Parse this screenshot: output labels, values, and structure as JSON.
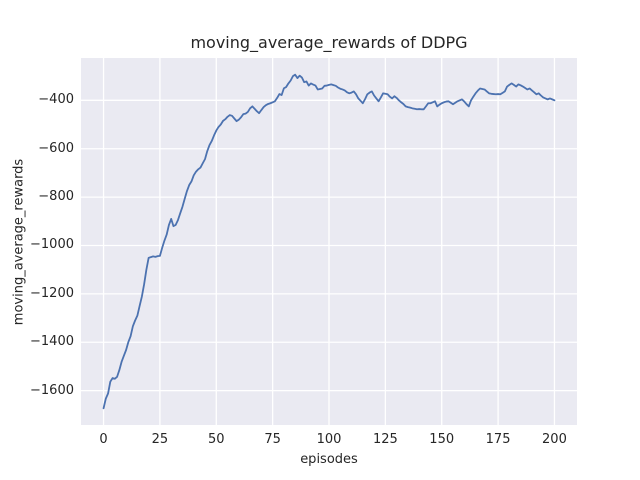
{
  "chart_data": {
    "type": "line",
    "title": "moving_average_rewards of DDPG",
    "xlabel": "episodes",
    "ylabel": "moving_average_rewards",
    "x_tick_labels": [
      "0",
      "25",
      "50",
      "75",
      "100",
      "125",
      "150",
      "175",
      "200"
    ],
    "x_tick_values": [
      0,
      25,
      50,
      75,
      100,
      125,
      150,
      175,
      200
    ],
    "y_tick_labels": [
      "−400",
      "−600",
      "−800",
      "−1000",
      "−1200",
      "−1400",
      "−1600"
    ],
    "y_tick_values": [
      -400,
      -600,
      -800,
      -1000,
      -1200,
      -1400,
      -1600
    ],
    "xlim": [
      -10,
      210
    ],
    "ylim": [
      -1742,
      -225
    ],
    "grid": true,
    "legend": false,
    "style": {
      "figure_background": "#ffffff",
      "plot_background": "#eaeaf2",
      "grid_color": "#ffffff",
      "text_color": "#262626"
    },
    "series": [
      {
        "name": "moving_average_rewards",
        "color": "#4c72b0",
        "x": [
          0,
          1,
          2,
          3,
          4,
          5,
          6,
          7,
          8,
          9,
          10,
          11,
          12,
          13,
          14,
          15,
          16,
          17,
          18,
          19,
          20,
          21,
          22,
          23,
          24,
          25,
          26,
          27,
          28,
          29,
          30,
          31,
          32,
          33,
          34,
          35,
          36,
          37,
          38,
          39,
          40,
          41,
          42,
          43,
          44,
          45,
          46,
          47,
          48,
          49,
          50,
          51,
          52,
          53,
          54,
          55,
          56,
          57,
          58,
          59,
          60,
          61,
          62,
          63,
          64,
          65,
          66,
          67,
          68,
          69,
          70,
          71,
          72,
          73,
          74,
          75,
          76,
          77,
          78,
          79,
          80,
          81,
          82,
          83,
          84,
          85,
          86,
          87,
          88,
          89,
          90,
          91,
          92,
          93,
          94,
          95,
          96,
          97,
          98,
          99,
          100,
          101,
          102,
          103,
          104,
          105,
          106,
          107,
          108,
          109,
          110,
          111,
          112,
          113,
          114,
          115,
          116,
          117,
          118,
          119,
          120,
          121,
          122,
          123,
          124,
          125,
          126,
          127,
          128,
          129,
          130,
          131,
          132,
          133,
          134,
          135,
          136,
          137,
          138,
          139,
          140,
          141,
          142,
          143,
          144,
          145,
          146,
          147,
          148,
          149,
          150,
          151,
          152,
          153,
          154,
          155,
          156,
          157,
          158,
          159,
          160,
          161,
          162,
          163,
          164,
          165,
          166,
          167,
          168,
          169,
          170,
          171,
          172,
          173,
          174,
          175,
          176,
          177,
          178,
          179,
          180,
          181,
          182,
          183,
          184,
          185,
          186,
          187,
          188,
          189,
          190,
          191,
          192,
          193,
          194,
          195,
          196,
          197,
          198,
          199,
          200
        ],
        "y": [
          -1673,
          -1633,
          -1612,
          -1563,
          -1548,
          -1551,
          -1543,
          -1515,
          -1481,
          -1456,
          -1432,
          -1399,
          -1375,
          -1334,
          -1310,
          -1290,
          -1250,
          -1211,
          -1160,
          -1100,
          -1051,
          -1048,
          -1045,
          -1047,
          -1044,
          -1043,
          -1010,
          -980,
          -955,
          -915,
          -890,
          -920,
          -915,
          -895,
          -867,
          -840,
          -807,
          -775,
          -750,
          -735,
          -710,
          -695,
          -685,
          -678,
          -660,
          -643,
          -610,
          -585,
          -568,
          -545,
          -525,
          -510,
          -500,
          -485,
          -478,
          -468,
          -461,
          -464,
          -475,
          -486,
          -480,
          -470,
          -457,
          -455,
          -448,
          -433,
          -425,
          -435,
          -445,
          -453,
          -440,
          -428,
          -420,
          -415,
          -412,
          -408,
          -404,
          -390,
          -374,
          -378,
          -350,
          -345,
          -330,
          -318,
          -300,
          -294,
          -308,
          -298,
          -306,
          -325,
          -322,
          -339,
          -330,
          -335,
          -339,
          -355,
          -353,
          -351,
          -340,
          -339,
          -336,
          -334,
          -337,
          -340,
          -347,
          -352,
          -355,
          -359,
          -367,
          -371,
          -368,
          -363,
          -375,
          -392,
          -402,
          -412,
          -395,
          -375,
          -368,
          -363,
          -380,
          -392,
          -404,
          -388,
          -371,
          -373,
          -375,
          -385,
          -392,
          -383,
          -390,
          -400,
          -408,
          -415,
          -425,
          -428,
          -430,
          -433,
          -435,
          -437,
          -436,
          -437,
          -437,
          -425,
          -412,
          -412,
          -408,
          -404,
          -425,
          -418,
          -412,
          -408,
          -405,
          -404,
          -410,
          -416,
          -410,
          -404,
          -400,
          -396,
          -405,
          -416,
          -425,
          -400,
          -385,
          -371,
          -360,
          -351,
          -353,
          -355,
          -363,
          -371,
          -373,
          -374,
          -375,
          -374,
          -375,
          -369,
          -363,
          -343,
          -336,
          -330,
          -336,
          -343,
          -334,
          -338,
          -343,
          -349,
          -355,
          -351,
          -359,
          -367,
          -375,
          -371,
          -380,
          -388,
          -392,
          -396,
          -392,
          -396,
          -400
        ]
      }
    ]
  }
}
